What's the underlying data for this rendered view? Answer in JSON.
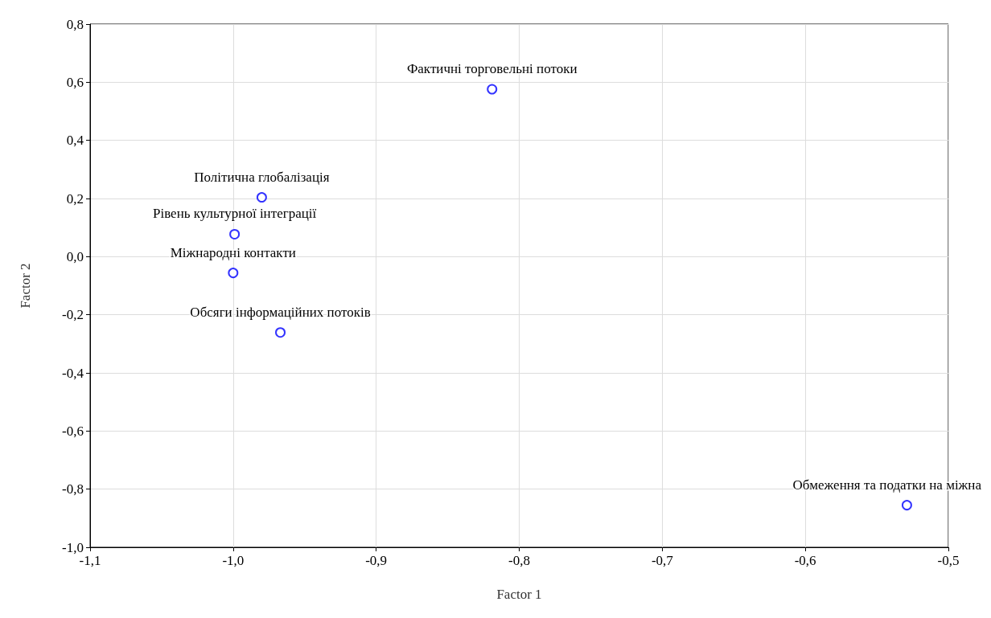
{
  "chart_data": {
    "type": "scatter",
    "xlabel": "Factor 1",
    "ylabel": "Factor 2",
    "x": [
      -0.819,
      -0.98,
      -0.999,
      -1.0,
      -0.967,
      -0.529
    ],
    "series": [
      {
        "color": "#0000ff",
        "values": [
          0.576,
          0.204,
          0.077,
          -0.056,
          -0.261,
          -0.855
        ]
      }
    ],
    "xlim": [
      -1.1,
      -0.5
    ],
    "xticks": [
      {
        "value": -1.1,
        "label": "-1,1"
      },
      {
        "value": -1.0,
        "label": "-1,0"
      },
      {
        "value": -0.9,
        "label": "-0,9"
      },
      {
        "value": -0.8,
        "label": "-0,8"
      },
      {
        "value": -0.7,
        "label": "-0,7"
      },
      {
        "value": -0.6,
        "label": "-0,6"
      },
      {
        "value": -0.5,
        "label": "-0,5"
      }
    ],
    "ylim": [
      -1.0,
      0.8
    ],
    "yticks": [
      {
        "value": -1.0,
        "label": "-1,0"
      },
      {
        "value": -0.8,
        "label": "-0,8"
      },
      {
        "value": -0.6,
        "label": "-0,6"
      },
      {
        "value": -0.4,
        "label": "-0,4"
      },
      {
        "value": -0.2,
        "label": "-0,2"
      },
      {
        "value": 0,
        "label": "0,0"
      },
      {
        "value": 0.2,
        "label": "0,2"
      },
      {
        "value": 0.4,
        "label": "0,4"
      },
      {
        "value": 0.6,
        "label": "0,6"
      },
      {
        "value": 0.8,
        "label": "0,8"
      }
    ],
    "grid": true,
    "marker": "circle",
    "annotations": [
      {
        "text": "Фактичні торговельні потоки",
        "x": -0.819,
        "y": 0.576
      },
      {
        "text": "Політична глобалізація",
        "x": -0.98,
        "y": 0.204
      },
      {
        "text": "Рівень культурної інтеграції",
        "x": -0.999,
        "y": 0.077
      },
      {
        "text": "Міжнародні контакти",
        "x": -1.0,
        "y": -0.056
      },
      {
        "text": "Обсяги інформаційних потоків",
        "x": -0.967,
        "y": -0.261
      },
      {
        "text": "Обмеження та податки на міжна",
        "x": -0.529,
        "y": -0.855
      }
    ]
  }
}
